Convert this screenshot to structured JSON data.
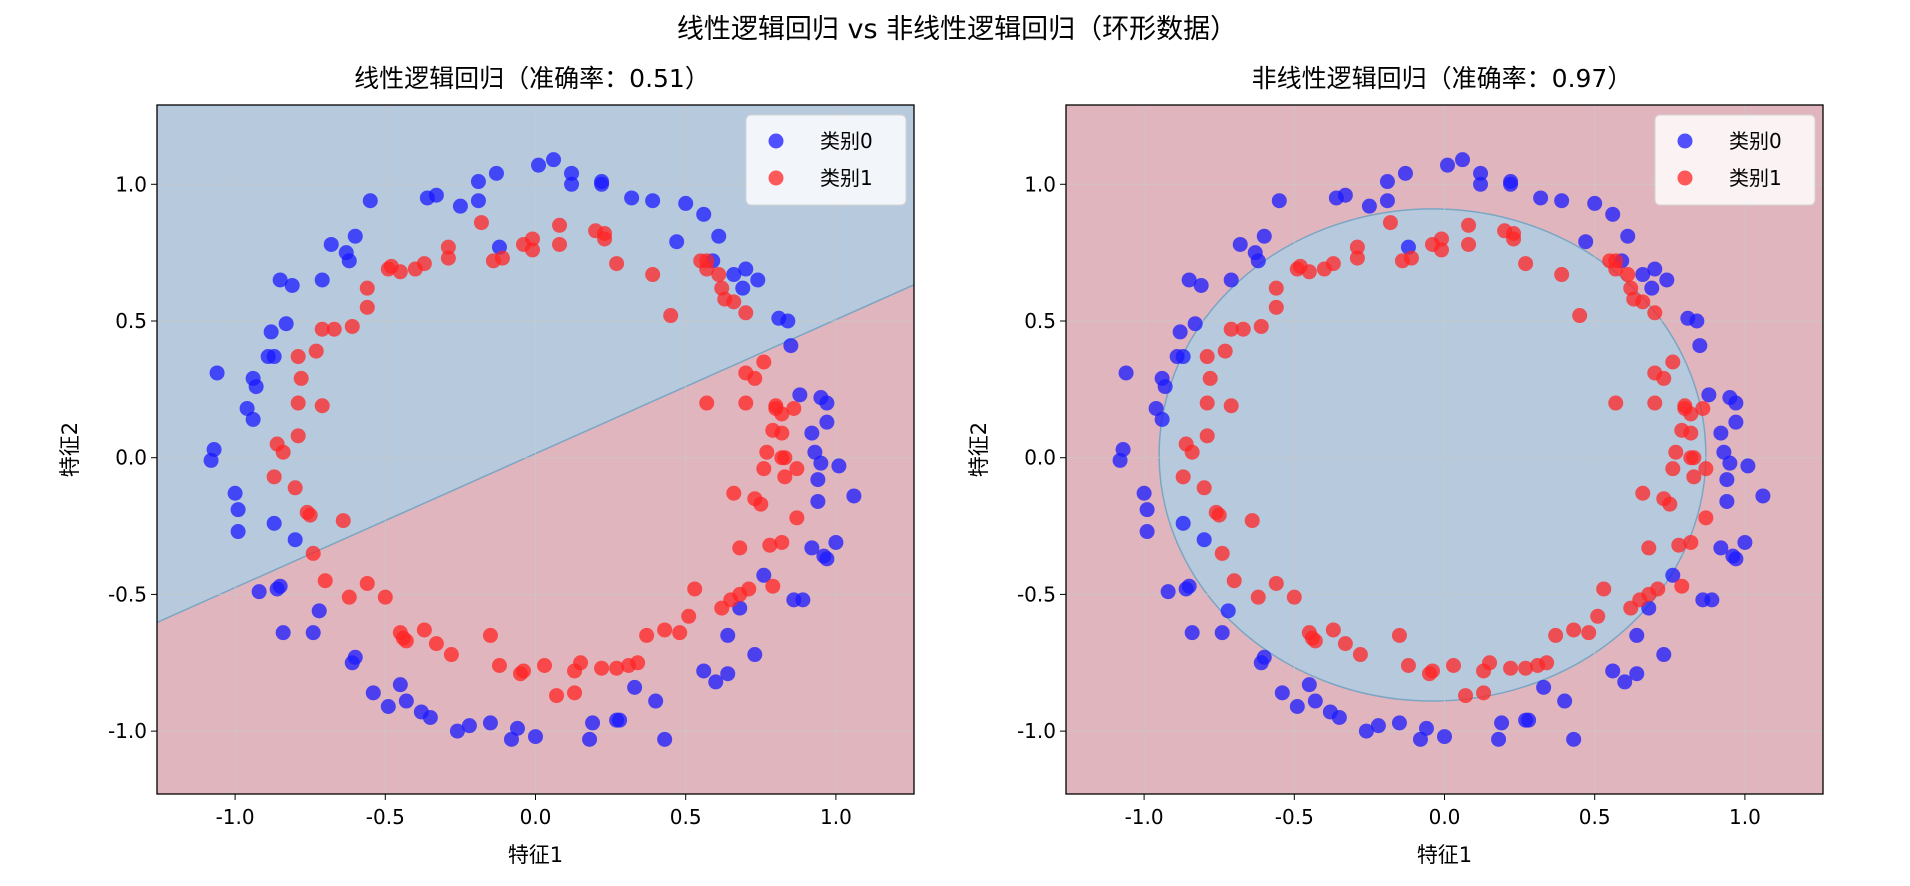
{
  "suptitle": "线性逻辑回归 vs 非线性逻辑回归（环形数据）",
  "colors": {
    "class0": "#1a1aff",
    "class1": "#ff2424",
    "region0": "#b7c9dd",
    "region1": "#e1b5bd",
    "boundary": "#7aa6c4",
    "grid": "#c9c9c9"
  },
  "chart_data": [
    {
      "type": "scatter",
      "title": "线性逻辑回归（准确率：0.51）",
      "xlabel": "特征1",
      "ylabel": "特征2",
      "xlim": [
        -1.26,
        1.26
      ],
      "ylim": [
        -1.23,
        1.29
      ],
      "xticks": [
        -1.0,
        -0.5,
        0.0,
        0.5,
        1.0
      ],
      "yticks": [
        -1.0,
        -0.5,
        0.0,
        0.5,
        1.0
      ],
      "tick_labels_x": [
        "-1.0",
        "-0.5",
        "0.0",
        "0.5",
        "1.0"
      ],
      "tick_labels_y": [
        "-1.0",
        "-0.5",
        "0.0",
        "0.5",
        "1.0"
      ],
      "grid": true,
      "legend": {
        "position": "top-right",
        "entries": [
          "类别0",
          "类别1"
        ]
      },
      "decision_boundary": {
        "kind": "line",
        "slope": 0.49,
        "intercept": 0.015,
        "above_class": 0,
        "below_class": 1
      },
      "series": [
        {
          "name": "类别0",
          "points": [
            [
              -1.06,
              0.31
            ],
            [
              -1.07,
              0.03
            ],
            [
              -1.08,
              -0.01
            ],
            [
              -1.0,
              -0.13
            ],
            [
              -0.99,
              -0.19
            ],
            [
              -0.99,
              -0.27
            ],
            [
              -0.96,
              0.18
            ],
            [
              -0.94,
              0.29
            ],
            [
              -0.94,
              0.14
            ],
            [
              -0.93,
              0.26
            ],
            [
              -0.92,
              -0.49
            ],
            [
              -0.89,
              0.37
            ],
            [
              -0.87,
              0.37
            ],
            [
              -0.88,
              0.46
            ],
            [
              -0.86,
              -0.48
            ],
            [
              -0.87,
              -0.24
            ],
            [
              -0.85,
              -0.47
            ],
            [
              -0.83,
              0.49
            ],
            [
              -0.8,
              -0.3
            ],
            [
              -0.85,
              0.65
            ],
            [
              -0.81,
              0.63
            ],
            [
              -0.84,
              -0.64
            ],
            [
              -0.71,
              0.65
            ],
            [
              -0.68,
              0.78
            ],
            [
              -0.74,
              -0.64
            ],
            [
              -0.72,
              -0.56
            ],
            [
              -0.63,
              0.75
            ],
            [
              -0.62,
              0.72
            ],
            [
              -0.6,
              0.81
            ],
            [
              -0.55,
              0.94
            ],
            [
              -0.6,
              -0.73
            ],
            [
              -0.61,
              -0.75
            ],
            [
              -0.54,
              -0.86
            ],
            [
              -0.49,
              -0.91
            ],
            [
              -0.45,
              -0.83
            ],
            [
              -0.43,
              -0.89
            ],
            [
              -0.36,
              0.95
            ],
            [
              -0.33,
              0.96
            ],
            [
              -0.38,
              -0.93
            ],
            [
              -0.35,
              -0.95
            ],
            [
              -0.25,
              0.92
            ],
            [
              -0.19,
              1.01
            ],
            [
              -0.19,
              0.94
            ],
            [
              -0.22,
              -0.98
            ],
            [
              -0.13,
              1.04
            ],
            [
              -0.15,
              -0.97
            ],
            [
              -0.26,
              -1.0
            ],
            [
              -0.12,
              0.77
            ],
            [
              0.01,
              1.07
            ],
            [
              0.06,
              1.09
            ],
            [
              0.12,
              1.04
            ],
            [
              0.12,
              1.0
            ],
            [
              0.22,
              1.01
            ],
            [
              0.22,
              1.0
            ],
            [
              0.32,
              0.95
            ],
            [
              0.39,
              0.94
            ],
            [
              0.5,
              0.93
            ],
            [
              0.56,
              0.89
            ],
            [
              0.47,
              0.79
            ],
            [
              0.61,
              0.81
            ],
            [
              0.59,
              0.72
            ],
            [
              0.66,
              0.67
            ],
            [
              0.7,
              0.69
            ],
            [
              0.69,
              0.62
            ],
            [
              0.74,
              0.65
            ],
            [
              0.81,
              0.51
            ],
            [
              0.84,
              0.5
            ],
            [
              0.85,
              0.41
            ],
            [
              0.88,
              0.23
            ],
            [
              0.95,
              0.22
            ],
            [
              0.97,
              0.2
            ],
            [
              0.92,
              0.09
            ],
            [
              0.97,
              0.13
            ],
            [
              1.01,
              -0.03
            ],
            [
              0.93,
              0.02
            ],
            [
              0.95,
              -0.02
            ],
            [
              1.06,
              -0.14
            ],
            [
              0.94,
              -0.08
            ],
            [
              0.94,
              -0.16
            ],
            [
              0.92,
              -0.33
            ],
            [
              0.96,
              -0.36
            ],
            [
              0.97,
              -0.37
            ],
            [
              1.0,
              -0.31
            ],
            [
              0.86,
              -0.52
            ],
            [
              0.89,
              -0.52
            ],
            [
              0.76,
              -0.43
            ],
            [
              0.73,
              -0.72
            ],
            [
              0.68,
              -0.55
            ],
            [
              0.64,
              -0.65
            ],
            [
              0.64,
              -0.79
            ],
            [
              0.6,
              -0.82
            ],
            [
              0.56,
              -0.78
            ],
            [
              0.33,
              -0.84
            ],
            [
              0.4,
              -0.89
            ],
            [
              0.43,
              -1.03
            ],
            [
              0.27,
              -0.96
            ],
            [
              0.28,
              -0.96
            ],
            [
              0.19,
              -0.97
            ],
            [
              0.18,
              -1.03
            ],
            [
              0.0,
              -1.02
            ],
            [
              -0.08,
              -1.03
            ],
            [
              -0.06,
              -0.99
            ]
          ]
        },
        {
          "name": "类别1",
          "points": [
            [
              -0.87,
              -0.07
            ],
            [
              -0.86,
              0.05
            ],
            [
              -0.84,
              0.02
            ],
            [
              -0.8,
              -0.11
            ],
            [
              -0.79,
              0.08
            ],
            [
              -0.79,
              0.2
            ],
            [
              -0.79,
              0.37
            ],
            [
              -0.78,
              0.29
            ],
            [
              -0.76,
              -0.2
            ],
            [
              -0.75,
              -0.21
            ],
            [
              -0.74,
              -0.35
            ],
            [
              -0.73,
              0.39
            ],
            [
              -0.71,
              0.19
            ],
            [
              -0.7,
              -0.45
            ],
            [
              -0.71,
              0.47
            ],
            [
              -0.67,
              0.47
            ],
            [
              -0.64,
              -0.23
            ],
            [
              -0.62,
              -0.51
            ],
            [
              -0.61,
              0.48
            ],
            [
              -0.56,
              0.55
            ],
            [
              -0.56,
              0.62
            ],
            [
              -0.56,
              -0.46
            ],
            [
              -0.5,
              -0.51
            ],
            [
              -0.49,
              0.69
            ],
            [
              -0.48,
              0.7
            ],
            [
              -0.45,
              0.68
            ],
            [
              -0.45,
              -0.64
            ],
            [
              -0.44,
              -0.66
            ],
            [
              -0.43,
              -0.67
            ],
            [
              -0.4,
              0.69
            ],
            [
              -0.37,
              0.71
            ],
            [
              -0.37,
              -0.63
            ],
            [
              -0.33,
              -0.68
            ],
            [
              -0.29,
              0.77
            ],
            [
              -0.29,
              0.73
            ],
            [
              -0.28,
              -0.72
            ],
            [
              -0.18,
              0.86
            ],
            [
              -0.15,
              -0.65
            ],
            [
              -0.14,
              0.72
            ],
            [
              -0.12,
              -0.76
            ],
            [
              -0.11,
              0.73
            ],
            [
              -0.05,
              -0.79
            ],
            [
              -0.04,
              -0.78
            ],
            [
              -0.04,
              0.78
            ],
            [
              -0.01,
              0.8
            ],
            [
              -0.01,
              0.76
            ],
            [
              0.03,
              -0.76
            ],
            [
              0.07,
              -0.87
            ],
            [
              0.08,
              0.85
            ],
            [
              0.08,
              0.78
            ],
            [
              0.13,
              -0.78
            ],
            [
              0.13,
              -0.86
            ],
            [
              0.15,
              -0.75
            ],
            [
              0.2,
              0.83
            ],
            [
              0.22,
              -0.77
            ],
            [
              0.23,
              0.82
            ],
            [
              0.23,
              0.8
            ],
            [
              0.27,
              -0.77
            ],
            [
              0.27,
              0.71
            ],
            [
              0.31,
              -0.76
            ],
            [
              0.34,
              -0.75
            ],
            [
              0.37,
              -0.65
            ],
            [
              0.39,
              0.67
            ],
            [
              0.43,
              -0.63
            ],
            [
              0.45,
              0.52
            ],
            [
              0.48,
              -0.64
            ],
            [
              0.51,
              -0.58
            ],
            [
              0.53,
              -0.48
            ],
            [
              0.55,
              0.72
            ],
            [
              0.57,
              0.72
            ],
            [
              0.57,
              0.69
            ],
            [
              0.61,
              0.67
            ],
            [
              0.62,
              -0.55
            ],
            [
              0.62,
              0.62
            ],
            [
              0.63,
              0.58
            ],
            [
              0.65,
              -0.52
            ],
            [
              0.66,
              0.57
            ],
            [
              0.68,
              -0.5
            ],
            [
              0.7,
              0.53
            ],
            [
              0.7,
              0.2
            ],
            [
              0.7,
              0.31
            ],
            [
              0.71,
              -0.48
            ],
            [
              0.73,
              0.29
            ],
            [
              0.75,
              -0.17
            ],
            [
              0.76,
              0.35
            ],
            [
              0.76,
              -0.04
            ],
            [
              0.77,
              0.02
            ],
            [
              0.78,
              -0.32
            ],
            [
              0.79,
              -0.47
            ],
            [
              0.8,
              0.18
            ],
            [
              0.8,
              0.19
            ],
            [
              0.82,
              0.16
            ],
            [
              0.82,
              0.09
            ],
            [
              0.82,
              -0.31
            ],
            [
              0.83,
              -0.07
            ],
            [
              0.87,
              -0.22
            ],
            [
              0.83,
              0.0
            ],
            [
              0.86,
              0.18
            ],
            [
              0.87,
              -0.04
            ],
            [
              0.79,
              0.1
            ],
            [
              0.82,
              0.0
            ],
            [
              0.73,
              -0.15
            ],
            [
              0.66,
              -0.13
            ],
            [
              0.68,
              -0.33
            ],
            [
              0.57,
              0.2
            ]
          ]
        }
      ]
    },
    {
      "type": "scatter",
      "title": "非线性逻辑回归（准确率：0.97）",
      "xlabel": "特征1",
      "ylabel": "特征2",
      "xlim": [
        -1.26,
        1.26
      ],
      "ylim": [
        -1.23,
        1.29
      ],
      "xticks": [
        -1.0,
        -0.5,
        0.0,
        0.5,
        1.0
      ],
      "yticks": [
        -1.0,
        -0.5,
        0.0,
        0.5,
        1.0
      ],
      "tick_labels_x": [
        "-1.0",
        "-0.5",
        "0.0",
        "0.5",
        "1.0"
      ],
      "tick_labels_y": [
        "-1.0",
        "-0.5",
        "0.0",
        "0.5",
        "1.0"
      ],
      "grid": true,
      "legend": {
        "position": "top-right",
        "entries": [
          "类别0",
          "类别1"
        ]
      },
      "decision_boundary": {
        "kind": "ellipse",
        "cx": -0.04,
        "cy": 0.01,
        "rx": 0.91,
        "ry": 0.9,
        "inside_class": 0,
        "outside_class": 1
      },
      "series": "same_as_chart_0"
    }
  ]
}
